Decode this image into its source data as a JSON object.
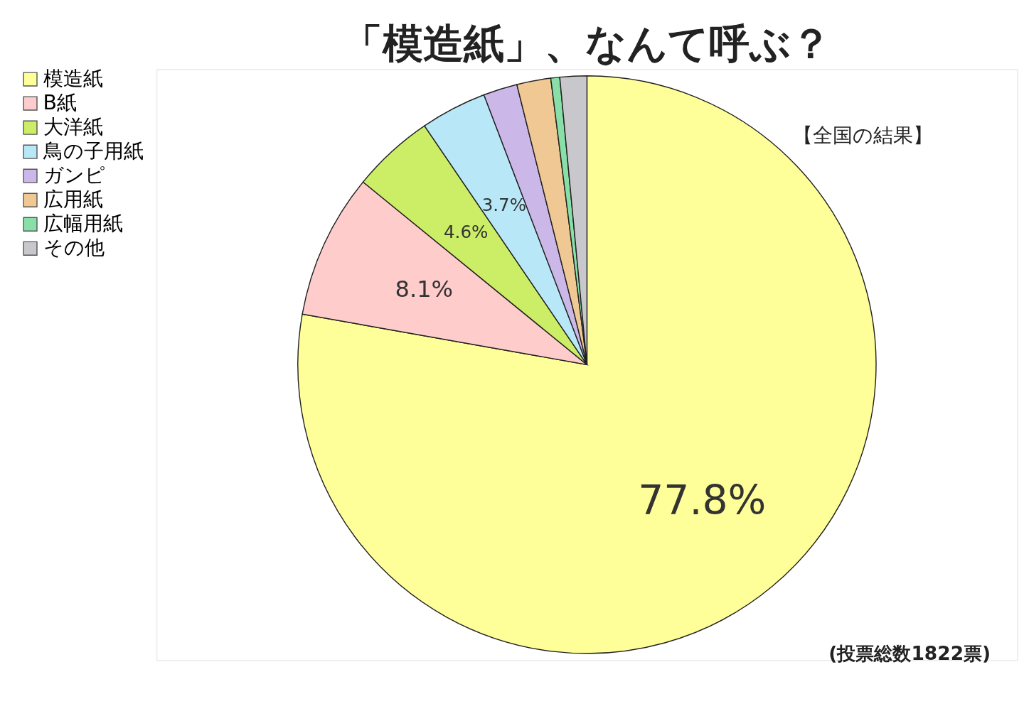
{
  "chart_data": {
    "type": "pie",
    "title": "「模造紙」、なんて呼ぶ？",
    "categories": [
      "模造紙",
      "B紙",
      "大洋紙",
      "鳥の子用紙",
      "ガンピ",
      "広用紙",
      "広幅用紙",
      "その他"
    ],
    "values": [
      77.8,
      8.1,
      4.6,
      3.7,
      1.9,
      1.9,
      0.5,
      1.5
    ],
    "colors": [
      "#ffff99",
      "#ffcccc",
      "#ccee66",
      "#b8e8f8",
      "#ccb8e8",
      "#f0c894",
      "#88e0a8",
      "#c8c8cc"
    ],
    "value_labels": [
      "77.8%",
      "8.1%",
      "4.6%",
      "3.7%",
      null,
      null,
      null,
      null
    ],
    "legend": "left",
    "annotations": [
      "【全国の結果】",
      "(投票総数1822票)"
    ]
  }
}
